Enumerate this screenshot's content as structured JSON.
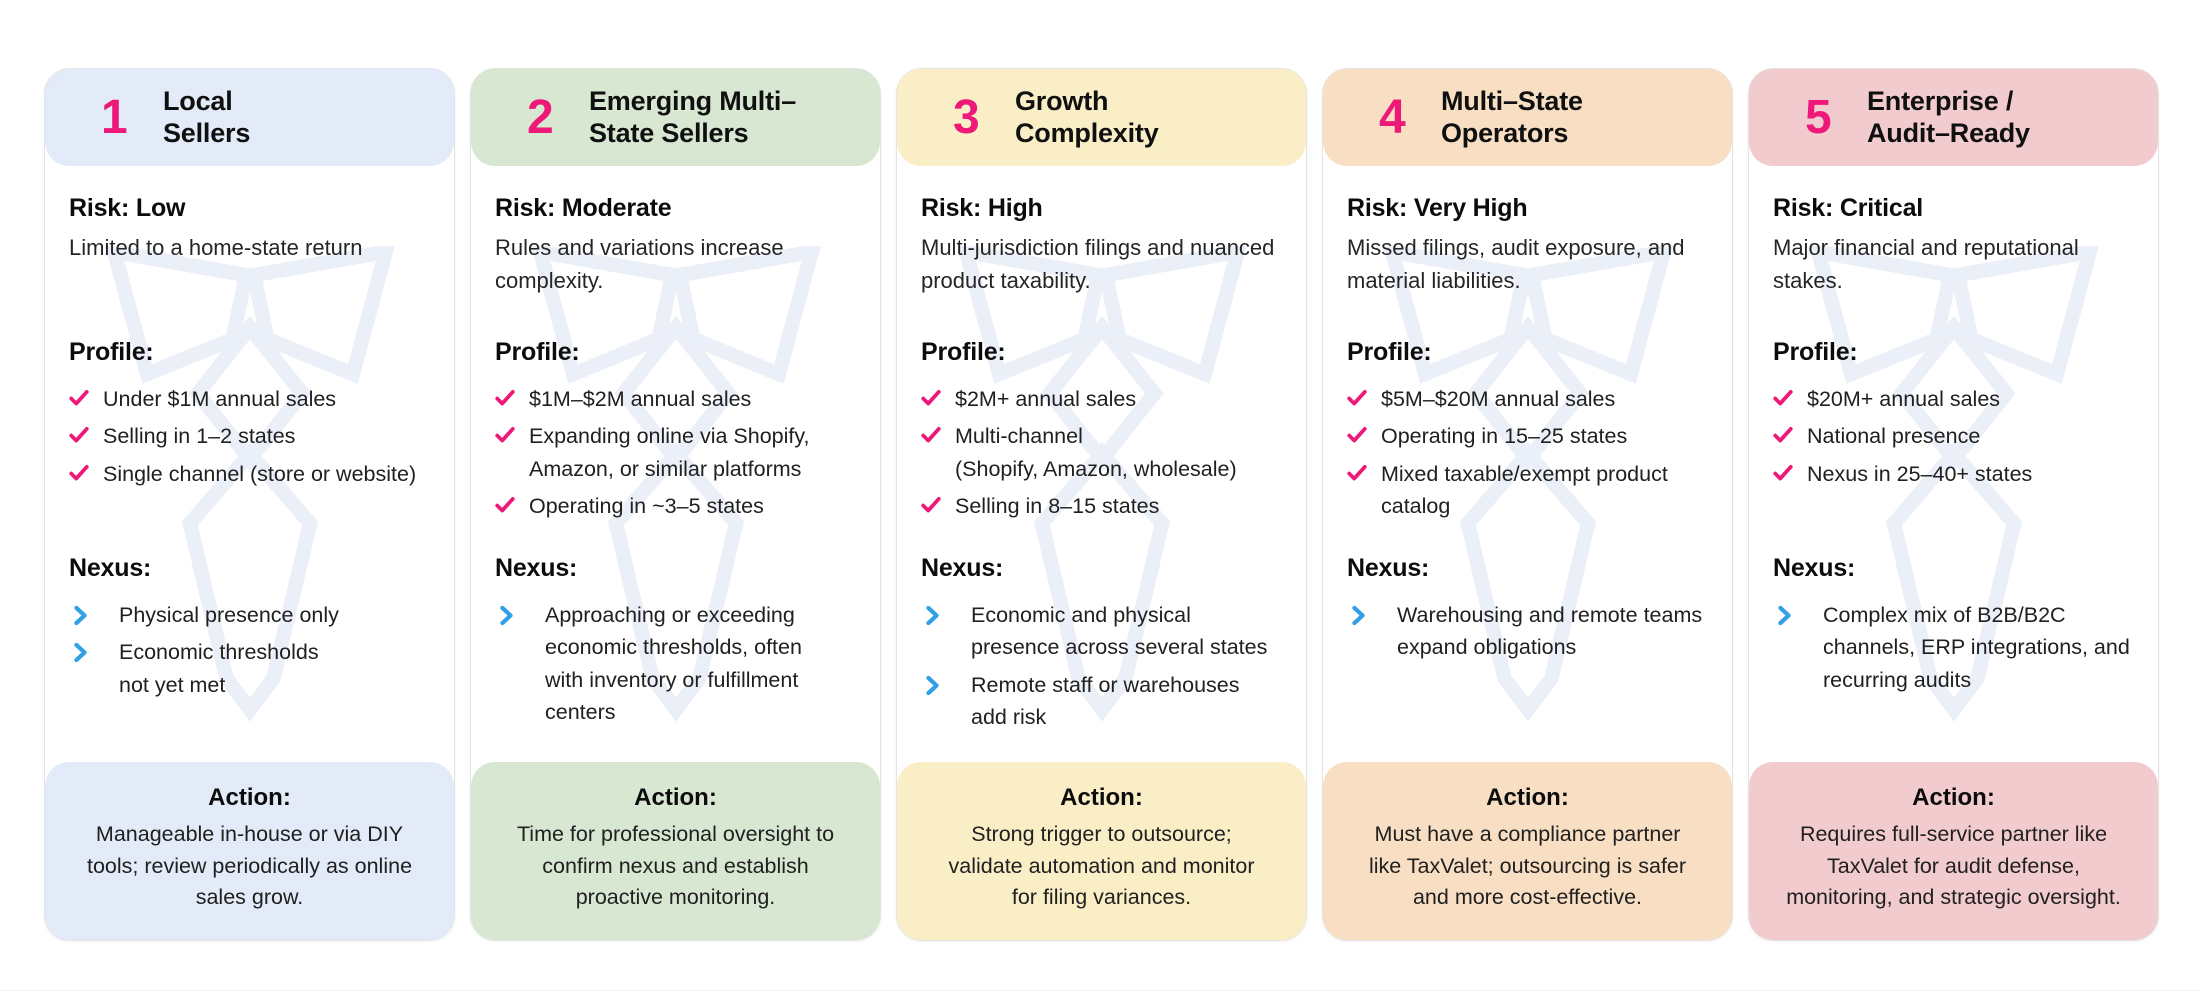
{
  "accent": {
    "pink": "#ed1878",
    "blue": "#31a0e6",
    "watermark": "#ebeff7"
  },
  "icons": {
    "check": "checkmark",
    "chevron": "right-chevron",
    "watermark": "taxvalet-tie-logo"
  },
  "section_labels": {
    "profile": "Profile:",
    "nexus": "Nexus:",
    "action": "Action:"
  },
  "cards": [
    {
      "number": "1",
      "title_lines": [
        "Local",
        "Sellers"
      ],
      "theme": "#e3eaf8",
      "risk_label": "Risk: Low",
      "risk_desc": "Limited to a home-state return",
      "profile_label": "Profile:",
      "profile_items": [
        "Under $1M annual sales",
        "Selling in 1–2 states",
        "Single channel (store or website)"
      ],
      "nexus_label": "Nexus:",
      "nexus_items": [
        "Physical presence only",
        "Economic thresholds\nnot yet met"
      ],
      "action_label": "Action:",
      "action_text": "Manageable in-house or via DIY\ntools; review periodically as online\nsales grow."
    },
    {
      "number": "2",
      "title_lines": [
        "Emerging Multi–",
        "State Sellers"
      ],
      "theme": "#d7e7d1",
      "risk_label": "Risk: Moderate",
      "risk_desc": "Rules and variations increase\ncomplexity.",
      "profile_label": "Profile:",
      "profile_items": [
        "$1M–$2M annual sales",
        "Expanding online via Shopify,\nAmazon, or similar platforms",
        "Operating in ~3–5 states"
      ],
      "nexus_label": "Nexus:",
      "nexus_items": [
        "Approaching or exceeding\neconomic thresholds, often\nwith inventory or fulfillment\ncenters"
      ],
      "action_label": "Action:",
      "action_text": "Time for professional oversight to\nconfirm nexus and establish\nproactive monitoring."
    },
    {
      "number": "3",
      "title_lines": [
        "Growth",
        "Complexity"
      ],
      "theme": "#faeec6",
      "risk_label": "Risk: High",
      "risk_desc": "Multi-jurisdiction filings and nuanced\nproduct taxability.",
      "profile_label": "Profile:",
      "profile_items": [
        "$2M+ annual sales",
        "Multi-channel\n(Shopify, Amazon, wholesale)",
        "Selling in 8–15 states"
      ],
      "nexus_label": "Nexus:",
      "nexus_items": [
        "Economic and physical\npresence across several states",
        "Remote staff or warehouses\nadd risk"
      ],
      "action_label": "Action:",
      "action_text": "Strong trigger to outsource;\nvalidate automation and monitor\nfor filing variances."
    },
    {
      "number": "4",
      "title_lines": [
        "Multi–State",
        "Operators"
      ],
      "theme": "#f8dfc4",
      "risk_label": "Risk: Very High",
      "risk_desc": "Missed filings, audit exposure, and\nmaterial liabilities.",
      "profile_label": "Profile:",
      "profile_items": [
        "$5M–$20M annual sales",
        "Operating in 15–25 states",
        "Mixed taxable/exempt product\ncatalog"
      ],
      "nexus_label": "Nexus:",
      "nexus_items": [
        "Warehousing and remote teams\nexpand obligations"
      ],
      "action_label": "Action:",
      "action_text": "Must have a compliance partner\nlike TaxValet; outsourcing is safer\nand more cost-effective."
    },
    {
      "number": "5",
      "title_lines": [
        "Enterprise /",
        "Audit–Ready"
      ],
      "theme": "#f2cbcf",
      "risk_label": "Risk: Critical",
      "risk_desc": "Major financial and reputational\nstakes.",
      "profile_label": "Profile:",
      "profile_items": [
        "$20M+ annual sales",
        "National presence",
        "Nexus in 25–40+ states"
      ],
      "nexus_label": "Nexus:",
      "nexus_items": [
        "Complex mix of B2B/B2C\nchannels, ERP integrations, and\nrecurring audits"
      ],
      "action_label": "Action:",
      "action_text": "Requires full-service partner like\nTaxValet for audit defense,\nmonitoring, and strategic oversight."
    }
  ]
}
